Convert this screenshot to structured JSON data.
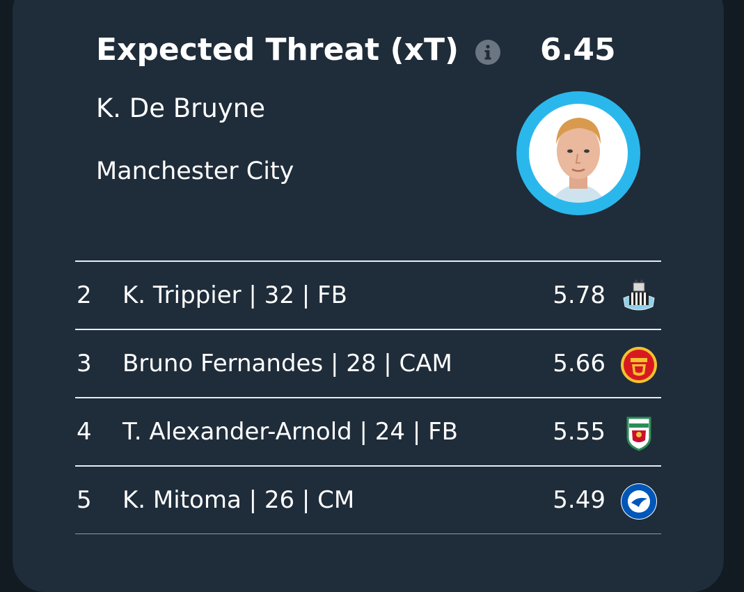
{
  "header": {
    "metric_title": "Expected Threat (xT)",
    "metric_value": "6.45",
    "info_icon": "info-icon"
  },
  "featured_player": {
    "name": "K. De Bruyne",
    "team": "Manchester City",
    "avatar_icon": "player-photo",
    "ring_color": "#2ab8ec"
  },
  "rankings": [
    {
      "rank": "2",
      "label": "K. Trippier | 32 | FB",
      "value": "5.78",
      "crest": "newcastle-crest-icon"
    },
    {
      "rank": "3",
      "label": "Bruno Fernandes | 28 | CAM",
      "value": "5.66",
      "crest": "manchester-united-crest-icon"
    },
    {
      "rank": "4",
      "label": "T. Alexander-Arnold | 24 | FB",
      "value": "5.55",
      "crest": "liverpool-crest-icon"
    },
    {
      "rank": "5",
      "label": "K. Mitoma | 26 | CM",
      "value": "5.49",
      "crest": "brighton-crest-icon"
    }
  ],
  "colors": {
    "card_bg": "#1f2c3a",
    "accent": "#2ab8ec",
    "text": "#ffffff"
  }
}
